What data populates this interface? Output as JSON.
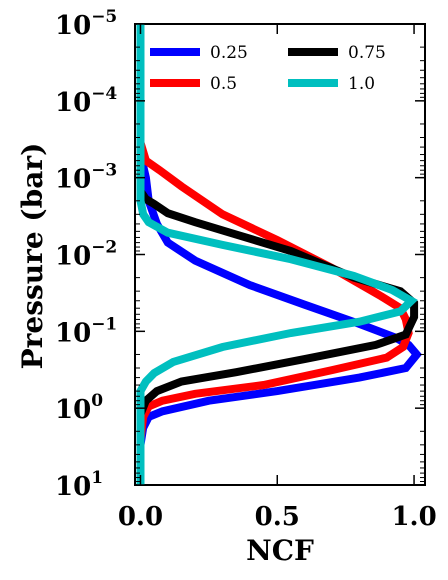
{
  "chart_data": {
    "type": "line",
    "title": "",
    "xlabel": "NCF",
    "ylabel": "Pressure (bar)",
    "xlim": [
      -0.02,
      1.04
    ],
    "ylim": [
      1e-05,
      10
    ],
    "y_scale": "log",
    "y_inverted": true,
    "grid": false,
    "legend_position": "top",
    "x_ticks": [
      {
        "value": 0.0,
        "label": "0.0"
      },
      {
        "value": 0.5,
        "label": "0.5"
      },
      {
        "value": 1.0,
        "label": "1.0"
      }
    ],
    "y_ticks": [
      {
        "value": 1e-05,
        "base": "10",
        "exp": "−5"
      },
      {
        "value": 0.0001,
        "base": "10",
        "exp": "−4"
      },
      {
        "value": 0.001,
        "base": "10",
        "exp": "−3"
      },
      {
        "value": 0.01,
        "base": "10",
        "exp": "−2"
      },
      {
        "value": 0.1,
        "base": "10",
        "exp": "−1"
      },
      {
        "value": 1,
        "base": "10",
        "exp": "0"
      },
      {
        "value": 10,
        "base": "10",
        "exp": "1"
      }
    ],
    "series": [
      {
        "name": "0.25",
        "color": "#0000ff",
        "points": [
          [
            0.0,
            1e-05
          ],
          [
            0.0,
            0.0001
          ],
          [
            0.0,
            0.0005
          ],
          [
            0.02,
            0.001
          ],
          [
            0.03,
            0.002
          ],
          [
            0.06,
            0.004
          ],
          [
            0.1,
            0.007
          ],
          [
            0.2,
            0.012
          ],
          [
            0.4,
            0.025
          ],
          [
            0.6,
            0.045
          ],
          [
            0.8,
            0.08
          ],
          [
            0.93,
            0.12
          ],
          [
            0.98,
            0.15
          ],
          [
            1.01,
            0.2
          ],
          [
            0.97,
            0.3
          ],
          [
            0.8,
            0.4
          ],
          [
            0.5,
            0.6
          ],
          [
            0.25,
            0.8
          ],
          [
            0.08,
            1.1
          ],
          [
            0.03,
            1.3
          ],
          [
            0.01,
            1.8
          ],
          [
            0.0,
            3
          ],
          [
            0.0,
            10
          ]
        ]
      },
      {
        "name": "0.5",
        "color": "#ff0000",
        "points": [
          [
            0.0,
            1e-05
          ],
          [
            0.0,
            0.0001
          ],
          [
            0.0,
            0.00035
          ],
          [
            0.02,
            0.0006
          ],
          [
            0.07,
            0.0008
          ],
          [
            0.15,
            0.0013
          ],
          [
            0.3,
            0.003
          ],
          [
            0.5,
            0.0065
          ],
          [
            0.7,
            0.015
          ],
          [
            0.88,
            0.035
          ],
          [
            0.95,
            0.05
          ],
          [
            0.97,
            0.07
          ],
          [
            0.98,
            0.105
          ],
          [
            0.96,
            0.16
          ],
          [
            0.9,
            0.22
          ],
          [
            0.7,
            0.32
          ],
          [
            0.45,
            0.5
          ],
          [
            0.2,
            0.65
          ],
          [
            0.08,
            0.8
          ],
          [
            0.03,
            0.95
          ],
          [
            0.01,
            1.3
          ],
          [
            0.0,
            2.5
          ],
          [
            0.0,
            10
          ]
        ]
      },
      {
        "name": "0.75",
        "color": "#000000",
        "points": [
          [
            0.0,
            1e-05
          ],
          [
            0.0,
            0.0001
          ],
          [
            0.0,
            0.0015
          ],
          [
            0.02,
            0.0019
          ],
          [
            0.05,
            0.0022
          ],
          [
            0.1,
            0.0029
          ],
          [
            0.2,
            0.0038
          ],
          [
            0.35,
            0.0055
          ],
          [
            0.55,
            0.009
          ],
          [
            0.78,
            0.02
          ],
          [
            0.95,
            0.03
          ],
          [
            1.0,
            0.043
          ],
          [
            1.0,
            0.065
          ],
          [
            0.97,
            0.11
          ],
          [
            0.86,
            0.15
          ],
          [
            0.6,
            0.23
          ],
          [
            0.35,
            0.34
          ],
          [
            0.15,
            0.45
          ],
          [
            0.06,
            0.6
          ],
          [
            0.02,
            0.8
          ],
          [
            0.0,
            1.2
          ],
          [
            0.0,
            10
          ]
        ]
      },
      {
        "name": "1.0",
        "color": "#00bfbf",
        "points": [
          [
            0.0,
            1e-05
          ],
          [
            0.0,
            0.0001
          ],
          [
            0.0,
            0.001
          ],
          [
            0.0,
            0.002
          ],
          [
            0.01,
            0.003
          ],
          [
            0.03,
            0.0038
          ],
          [
            0.1,
            0.0052
          ],
          [
            0.3,
            0.0075
          ],
          [
            0.55,
            0.0115
          ],
          [
            0.78,
            0.019
          ],
          [
            0.92,
            0.029
          ],
          [
            0.99,
            0.04
          ],
          [
            0.95,
            0.055
          ],
          [
            0.8,
            0.075
          ],
          [
            0.55,
            0.105
          ],
          [
            0.3,
            0.16
          ],
          [
            0.12,
            0.25
          ],
          [
            0.05,
            0.35
          ],
          [
            0.02,
            0.45
          ],
          [
            0.0,
            0.6
          ],
          [
            0.0,
            10
          ]
        ]
      }
    ]
  }
}
